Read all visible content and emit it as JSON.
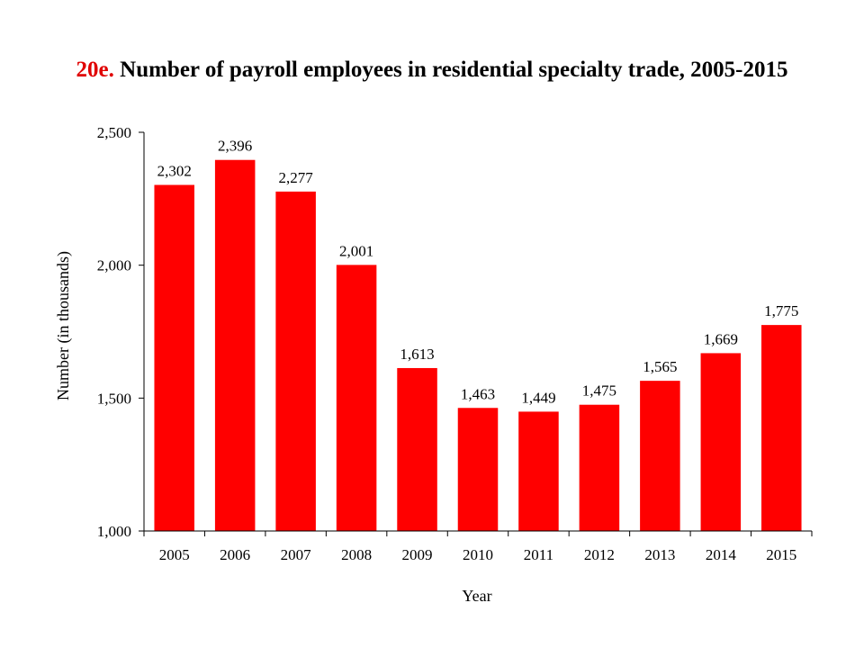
{
  "title": {
    "number": "20e.",
    "text": "Number of payroll employees in residential specialty trade, 2005-2015"
  },
  "colors": {
    "bar": "#ff0000",
    "title_number": "#e00000",
    "axis": "#000000"
  },
  "chart_data": {
    "type": "bar",
    "title": "20e. Number of payroll employees in residential specialty trade, 2005-2015",
    "xlabel": "Year",
    "ylabel": "Number (in thousands)",
    "categories": [
      "2005",
      "2006",
      "2007",
      "2008",
      "2009",
      "2010",
      "2011",
      "2012",
      "2013",
      "2014",
      "2015"
    ],
    "values": [
      2302,
      2396,
      2277,
      2001,
      1613,
      1463,
      1449,
      1475,
      1565,
      1669,
      1775
    ],
    "value_labels": [
      "2,302",
      "2,396",
      "2,277",
      "2,001",
      "1,613",
      "1,463",
      "1,449",
      "1,475",
      "1,565",
      "1,669",
      "1,775"
    ],
    "ylim": [
      1000,
      2500
    ],
    "yticks": [
      1000,
      1500,
      2000,
      2500
    ],
    "ytick_labels": [
      "1,000",
      "1,500",
      "2,000",
      "2,500"
    ],
    "grid": false,
    "legend": "none"
  }
}
